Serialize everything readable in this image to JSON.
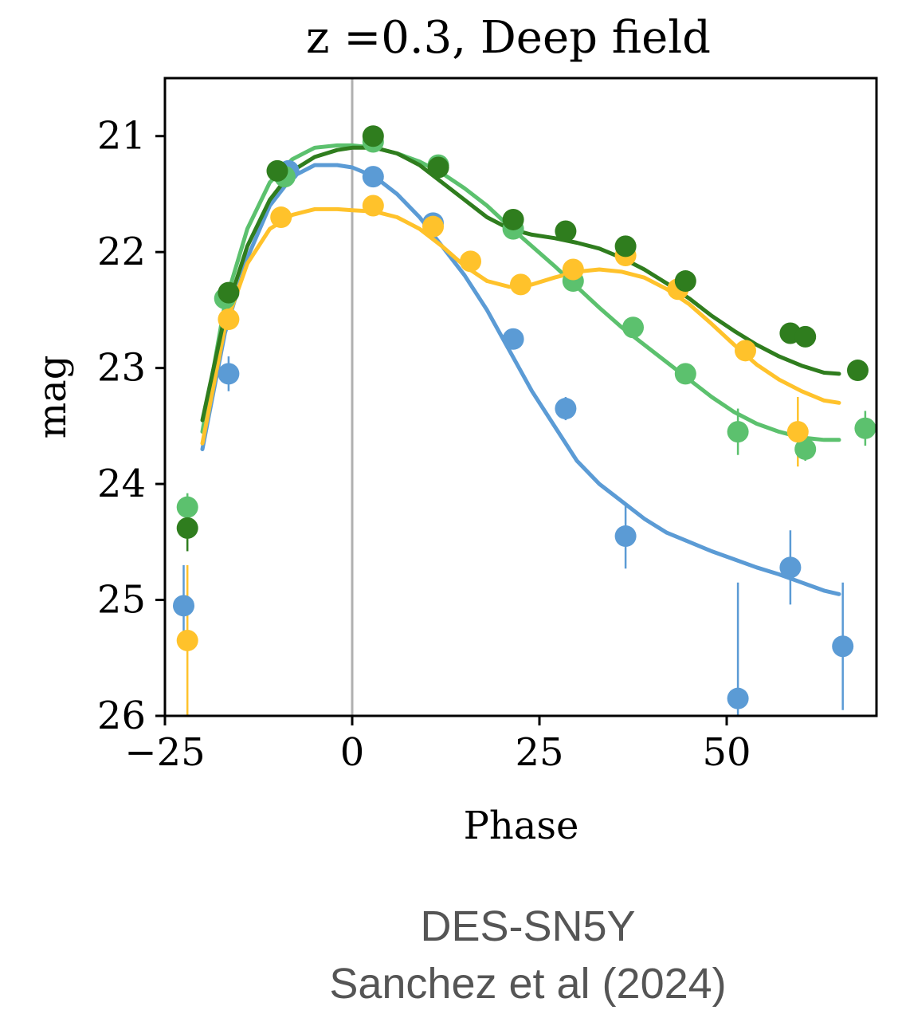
{
  "chart_data": {
    "type": "scatter",
    "title": "z =0.3, Deep field",
    "xlabel": "Phase",
    "ylabel": "mag",
    "xlim": [
      -25,
      70
    ],
    "ylim": [
      26,
      20.5
    ],
    "y_inverted": true,
    "xticks": [
      -25,
      0,
      25,
      50
    ],
    "xtick_labels": [
      "−25",
      "0",
      "25",
      "50"
    ],
    "yticks": [
      21,
      22,
      23,
      24,
      25,
      26
    ],
    "ytick_labels": [
      "21",
      "22",
      "23",
      "24",
      "25",
      "26"
    ],
    "grid": false,
    "legend": "none",
    "reference_line_x": 0,
    "series": [
      {
        "color": "#5b9bd5",
        "points": [
          {
            "x": -22.5,
            "y": 25.05,
            "err": 0.35
          },
          {
            "x": -16.5,
            "y": 23.05,
            "err": 0.15
          },
          {
            "x": -8.5,
            "y": 21.3,
            "err": 0.05
          },
          {
            "x": 2.8,
            "y": 21.35,
            "err": 0.05
          },
          {
            "x": 10.8,
            "y": 21.75,
            "err": 0.08
          },
          {
            "x": 21.5,
            "y": 22.75,
            "err": 0.08
          },
          {
            "x": 28.5,
            "y": 23.35,
            "err": 0.1
          },
          {
            "x": 36.5,
            "y": 24.45,
            "err": 0.28
          },
          {
            "x": 51.5,
            "y": 25.85,
            "err": 1.0
          },
          {
            "x": 58.5,
            "y": 24.72,
            "err": 0.32
          },
          {
            "x": 65.5,
            "y": 25.4,
            "err": 0.55
          }
        ],
        "model": {
          "x": [
            -20,
            -17,
            -14,
            -11,
            -8,
            -5,
            -2,
            0,
            3,
            6,
            9,
            12,
            15,
            18,
            21,
            24,
            27,
            30,
            33,
            36,
            39,
            42,
            45,
            48,
            51,
            54,
            57,
            60,
            63,
            65
          ],
          "y": [
            23.7,
            22.7,
            22.05,
            21.6,
            21.35,
            21.25,
            21.25,
            21.27,
            21.35,
            21.5,
            21.7,
            21.95,
            22.2,
            22.5,
            22.85,
            23.2,
            23.5,
            23.8,
            24.0,
            24.15,
            24.3,
            24.42,
            24.5,
            24.58,
            24.65,
            24.72,
            24.78,
            24.85,
            24.92,
            24.95
          ]
        }
      },
      {
        "color": "#5cc16e",
        "points": [
          {
            "x": -22.0,
            "y": 24.2,
            "err": 0.12
          },
          {
            "x": -17.0,
            "y": 22.4,
            "err": 0.08
          },
          {
            "x": -9.0,
            "y": 21.35,
            "err": 0.05
          },
          {
            "x": 2.8,
            "y": 21.05,
            "err": 0.04
          },
          {
            "x": 11.5,
            "y": 21.25,
            "err": 0.05
          },
          {
            "x": 21.5,
            "y": 21.8,
            "err": 0.05
          },
          {
            "x": 29.5,
            "y": 22.25,
            "err": 0.06
          },
          {
            "x": 37.5,
            "y": 22.65,
            "err": 0.07
          },
          {
            "x": 44.5,
            "y": 23.05,
            "err": 0.08
          },
          {
            "x": 51.5,
            "y": 23.55,
            "err": 0.2
          },
          {
            "x": 60.5,
            "y": 23.7,
            "err": 0.1
          },
          {
            "x": 68.5,
            "y": 23.52,
            "err": 0.15
          }
        ],
        "model": {
          "x": [
            -20,
            -17,
            -14,
            -11,
            -8,
            -5,
            -2,
            0,
            3,
            6,
            9,
            12,
            15,
            18,
            21,
            24,
            27,
            30,
            33,
            36,
            39,
            42,
            45,
            48,
            51,
            54,
            57,
            60,
            63,
            65
          ],
          "y": [
            23.55,
            22.45,
            21.8,
            21.4,
            21.2,
            21.1,
            21.08,
            21.08,
            21.1,
            21.15,
            21.22,
            21.32,
            21.45,
            21.6,
            21.78,
            21.95,
            22.12,
            22.3,
            22.48,
            22.65,
            22.8,
            22.95,
            23.1,
            23.25,
            23.38,
            23.48,
            23.55,
            23.6,
            23.62,
            23.62
          ]
        }
      },
      {
        "color": "#ffc22b",
        "points": [
          {
            "x": -22.0,
            "y": 25.35,
            "err": 0.65
          },
          {
            "x": -16.5,
            "y": 22.58,
            "err": 0.08
          },
          {
            "x": -9.5,
            "y": 21.7,
            "err": 0.06
          },
          {
            "x": 2.8,
            "y": 21.6,
            "err": 0.05
          },
          {
            "x": 10.8,
            "y": 21.78,
            "err": 0.06
          },
          {
            "x": 15.8,
            "y": 22.08,
            "err": 0.06
          },
          {
            "x": 22.5,
            "y": 22.28,
            "err": 0.06
          },
          {
            "x": 29.5,
            "y": 22.15,
            "err": 0.06
          },
          {
            "x": 36.5,
            "y": 22.03,
            "err": 0.06
          },
          {
            "x": 43.5,
            "y": 22.32,
            "err": 0.07
          },
          {
            "x": 52.5,
            "y": 22.85,
            "err": 0.08
          },
          {
            "x": 59.5,
            "y": 23.55,
            "err": 0.3
          }
        ],
        "model": {
          "x": [
            -20,
            -17,
            -14,
            -11,
            -8,
            -5,
            -2,
            0,
            3,
            6,
            9,
            12,
            15,
            18,
            21,
            24,
            27,
            30,
            33,
            36,
            39,
            42,
            45,
            48,
            51,
            54,
            57,
            60,
            63,
            65
          ],
          "y": [
            23.65,
            22.65,
            22.1,
            21.8,
            21.68,
            21.63,
            21.63,
            21.64,
            21.65,
            21.7,
            21.8,
            21.95,
            22.12,
            22.25,
            22.3,
            22.28,
            22.22,
            22.17,
            22.15,
            22.17,
            22.22,
            22.32,
            22.45,
            22.62,
            22.8,
            22.97,
            23.1,
            23.2,
            23.28,
            23.3
          ]
        }
      },
      {
        "color": "#2f7d1e",
        "points": [
          {
            "x": -22.0,
            "y": 24.38,
            "err": 0.2
          },
          {
            "x": -16.5,
            "y": 22.35,
            "err": 0.06
          },
          {
            "x": -10.0,
            "y": 21.3,
            "err": 0.05
          },
          {
            "x": 2.8,
            "y": 21.0,
            "err": 0.04
          },
          {
            "x": 11.5,
            "y": 21.27,
            "err": 0.05
          },
          {
            "x": 21.5,
            "y": 21.72,
            "err": 0.05
          },
          {
            "x": 28.5,
            "y": 21.82,
            "err": 0.05
          },
          {
            "x": 36.5,
            "y": 21.95,
            "err": 0.05
          },
          {
            "x": 44.5,
            "y": 22.25,
            "err": 0.05
          },
          {
            "x": 58.5,
            "y": 22.7,
            "err": 0.06
          },
          {
            "x": 60.5,
            "y": 22.73,
            "err": 0.06
          },
          {
            "x": 67.5,
            "y": 23.02,
            "err": 0.07
          }
        ],
        "model": {
          "x": [
            -20,
            -17,
            -14,
            -11,
            -8,
            -5,
            -2,
            0,
            3,
            6,
            9,
            12,
            15,
            18,
            21,
            24,
            27,
            30,
            33,
            36,
            39,
            42,
            45,
            48,
            51,
            54,
            57,
            60,
            63,
            65
          ],
          "y": [
            23.45,
            22.55,
            21.95,
            21.55,
            21.3,
            21.18,
            21.12,
            21.1,
            21.1,
            21.15,
            21.25,
            21.4,
            21.55,
            21.7,
            21.8,
            21.85,
            21.88,
            21.92,
            21.97,
            22.05,
            22.15,
            22.27,
            22.4,
            22.55,
            22.68,
            22.8,
            22.9,
            22.98,
            23.04,
            23.05
          ]
        }
      }
    ]
  },
  "caption": {
    "line1": "DES-SN5Y",
    "line2": "Sanchez et al (2024)"
  }
}
